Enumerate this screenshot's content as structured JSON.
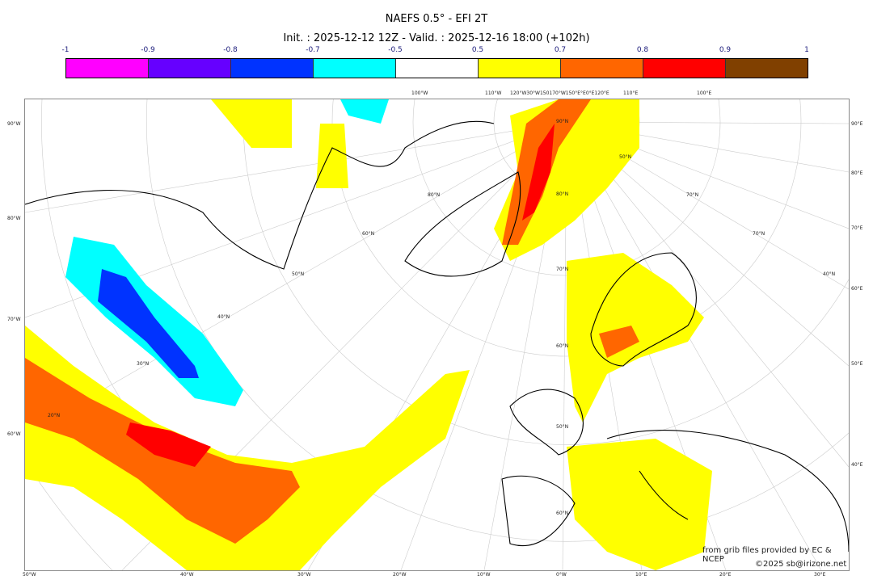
{
  "title": "NAEFS 0.5° - EFI 2T",
  "subtitle": "Init. : 2025-12-12 12Z - Valid. : 2025-12-16 18:00 (+102h)",
  "colorbar": {
    "ticks": [
      "-1",
      "-0.9",
      "-0.8",
      "-0.7",
      "-0.5",
      "0.5",
      "0.7",
      "0.8",
      "0.9",
      "1"
    ],
    "colors": [
      "#ff00ff",
      "#6600ff",
      "#0033ff",
      "#00ffff",
      "#ffffff",
      "#ffff00",
      "#ff6600",
      "#ff0000",
      "#804000"
    ]
  },
  "axes": {
    "left": [
      "90°W",
      "80°W",
      "70°W",
      "60°W"
    ],
    "right": [
      "90°E",
      "80°E",
      "70°E",
      "60°E",
      "50°E",
      "40°E"
    ],
    "bottom": [
      "50°W",
      "40°W",
      "30°W",
      "20°W",
      "10°W",
      "0°W",
      "10°E",
      "20°E",
      "30°E"
    ],
    "top": [
      "100°W",
      "110°W",
      "120°W30°W150170°W150°E°E0°E120°E",
      "110°E",
      "100°E"
    ],
    "inner": [
      "90°N",
      "80°N",
      "70°N",
      "60°N",
      "50°N",
      "40°N",
      "30°N",
      "20°N",
      "70°N",
      "60°N",
      "50°N",
      "40°N",
      "80°N",
      "70°N",
      "60°N",
      "50°N"
    ]
  },
  "credits": {
    "source": "from grib files provided by EC & NCEP",
    "copyright": "©2025 sb@irizone.net"
  }
}
